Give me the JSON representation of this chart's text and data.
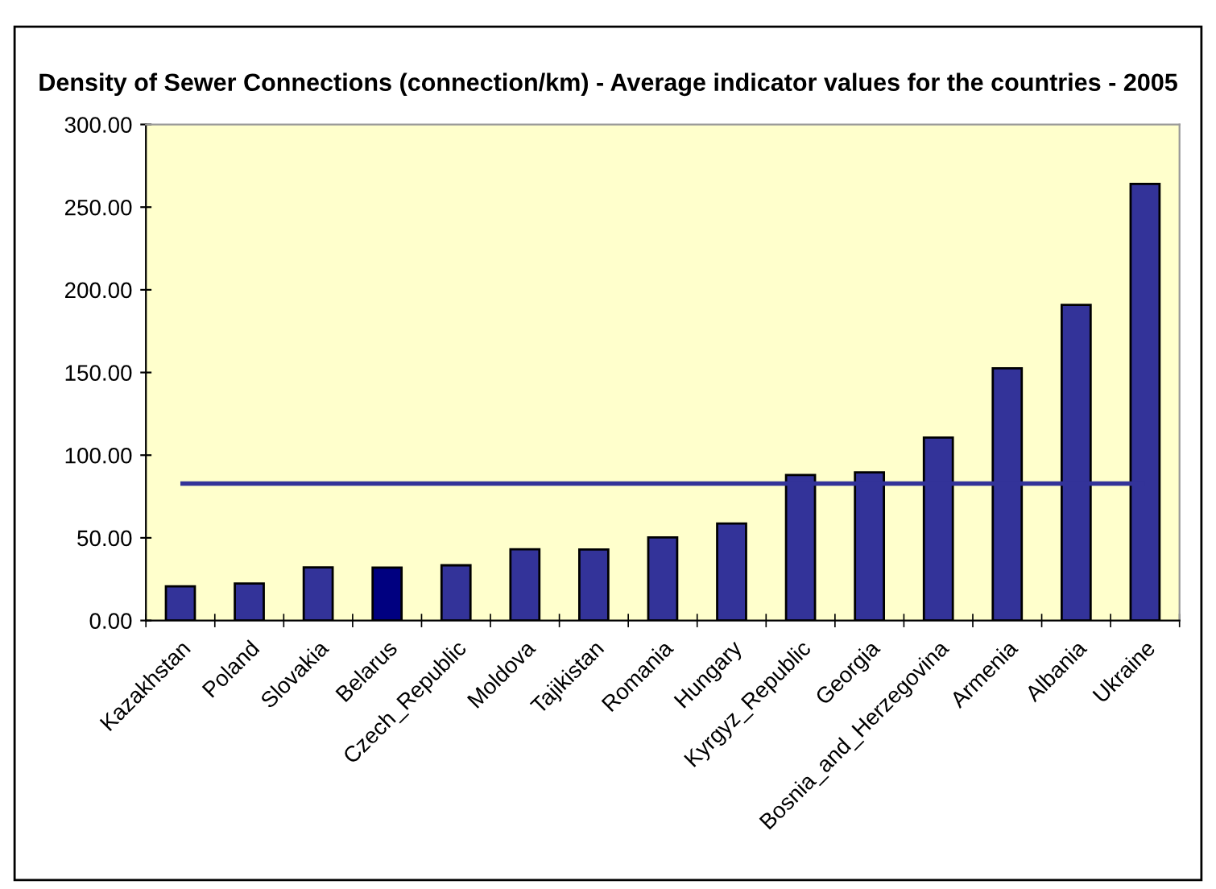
{
  "chart_data": {
    "type": "bar",
    "title": "Density of Sewer Connections (connection/km) - Average indicator values for the countries - 2005",
    "categories": [
      "Kazakhstan",
      "Poland",
      "Slovakia",
      "Belarus",
      "Czech_Republic",
      "Moldova",
      "Tajikistan",
      "Romania",
      "Hungary",
      "Kyrgyz_Republic",
      "Georgia",
      "Bosnia_and_Herzegovina",
      "Armenia",
      "Albania",
      "Ukraine"
    ],
    "values": [
      20.7,
      22.4,
      32.1,
      32.0,
      33.4,
      43.1,
      43.0,
      50.3,
      58.7,
      88.0,
      89.6,
      110.6,
      152.5,
      190.9,
      264.0
    ],
    "colors": [
      "#333399",
      "#333399",
      "#333399",
      "#000080",
      "#333399",
      "#333399",
      "#333399",
      "#333399",
      "#333399",
      "#333399",
      "#333399",
      "#333399",
      "#333399",
      "#333399",
      "#333399"
    ],
    "ylim": [
      0,
      300
    ],
    "yticks": [
      {
        "value": 0,
        "label": "0.00"
      },
      {
        "value": 50,
        "label": "50.00"
      },
      {
        "value": 100,
        "label": "100.00"
      },
      {
        "value": 150,
        "label": "150.00"
      },
      {
        "value": 200,
        "label": "200.00"
      },
      {
        "value": 250,
        "label": "250.00"
      },
      {
        "value": 300,
        "label": "300.00"
      }
    ],
    "ref_lines": [
      {
        "axis": "y",
        "value": 82.8,
        "label": null,
        "color": "#333399"
      }
    ],
    "grid": false,
    "legend": false
  }
}
